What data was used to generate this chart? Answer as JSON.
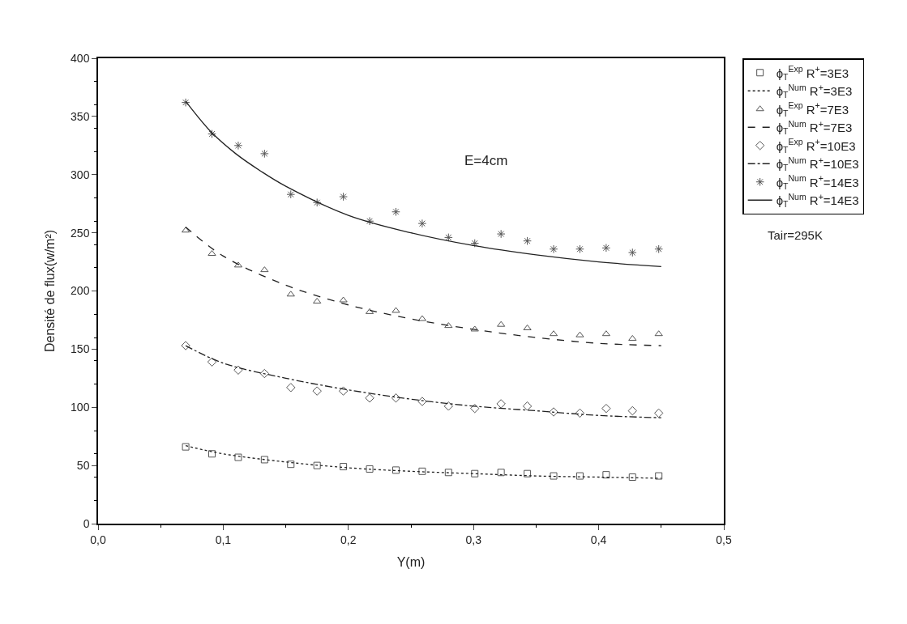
{
  "chart_data": {
    "type": "scatter",
    "xlabel": "Y(m)",
    "ylabel": "Densité de flux(w/m²)",
    "xlim": [
      0,
      0.5
    ],
    "xticks": [
      {
        "value": 0,
        "label": "0,0"
      },
      {
        "value": 0.1,
        "label": "0,1"
      },
      {
        "value": 0.2,
        "label": "0,2"
      },
      {
        "value": 0.3,
        "label": "0,3"
      },
      {
        "value": 0.4,
        "label": "0,4"
      },
      {
        "value": 0.5,
        "label": "0,5"
      }
    ],
    "ylim": [
      0,
      400
    ],
    "yticks": [
      0,
      50,
      100,
      150,
      200,
      250,
      300,
      350,
      400
    ],
    "legend": "right",
    "annotations": [
      "E=4cm",
      "Tair=295K"
    ],
    "series": [
      {
        "name": "ϕ$_{T}$$^{Exp}$ R$^{+}$=3E3",
        "marker": "square",
        "color": "#555555",
        "x": [
          0.07,
          0.091,
          0.112,
          0.133,
          0.154,
          0.175,
          0.196,
          0.217,
          0.238,
          0.259,
          0.28,
          0.301,
          0.322,
          0.343,
          0.364,
          0.385,
          0.406,
          0.427,
          0.448
        ],
        "values": [
          66,
          60,
          57,
          55,
          51,
          50,
          49,
          47,
          46,
          45,
          44,
          43,
          44,
          43,
          41,
          41,
          42,
          40,
          41
        ]
      },
      {
        "name": "ϕ$_{T}$$^{Num}$ R$^{+}$=3E3",
        "type": "line",
        "line_style": "dotted",
        "color": "#222222",
        "x": [
          0.07,
          0.1,
          0.15,
          0.2,
          0.25,
          0.3,
          0.35,
          0.4,
          0.45
        ],
        "values": [
          67,
          60,
          53,
          48,
          45,
          43,
          41,
          40,
          39
        ]
      },
      {
        "name": "ϕ$_{T}$$^{Exp}$ R$^{+}$=7E3",
        "marker": "triangle",
        "color": "#555555",
        "x": [
          0.07,
          0.091,
          0.112,
          0.133,
          0.154,
          0.175,
          0.196,
          0.217,
          0.238,
          0.259,
          0.28,
          0.301,
          0.322,
          0.343,
          0.364,
          0.385,
          0.406,
          0.427,
          0.448
        ],
        "values": [
          252,
          232,
          222,
          218,
          197,
          191,
          192,
          182,
          183,
          176,
          170,
          167,
          171,
          168,
          163,
          162,
          163,
          159,
          163
        ]
      },
      {
        "name": "ϕ$_{T}$$^{Num}$ R$^{+}$=7E3",
        "type": "line",
        "line_style": "dashed",
        "color": "#222222",
        "x": [
          0.07,
          0.1,
          0.15,
          0.2,
          0.25,
          0.3,
          0.35,
          0.4,
          0.45
        ],
        "values": [
          255,
          230,
          205,
          188,
          176,
          167,
          160,
          155,
          153
        ]
      },
      {
        "name": "ϕ$_{T}$$^{Exp}$ R$^{+}$=10E3",
        "marker": "diamond",
        "color": "#555555",
        "x": [
          0.07,
          0.091,
          0.112,
          0.133,
          0.154,
          0.175,
          0.196,
          0.217,
          0.238,
          0.259,
          0.28,
          0.301,
          0.322,
          0.343,
          0.364,
          0.385,
          0.406,
          0.427,
          0.448
        ],
        "values": [
          153,
          139,
          132,
          129,
          117,
          114,
          114,
          108,
          108,
          105,
          101,
          99,
          103,
          101,
          96,
          95,
          99,
          97,
          95
        ]
      },
      {
        "name": "ϕ$_{T}$$^{Num}$ R$^{+}$=10E3",
        "type": "line",
        "line_style": "dashdot",
        "color": "#222222",
        "x": [
          0.07,
          0.1,
          0.15,
          0.2,
          0.25,
          0.3,
          0.35,
          0.4,
          0.45
        ],
        "values": [
          153,
          138,
          125,
          115,
          107,
          101,
          97,
          93,
          91
        ]
      },
      {
        "name": "ϕ$_{T}$$^{Num}$ R$^{+}$=14E3",
        "marker": "cross",
        "color": "#555555",
        "x": [
          0.07,
          0.091,
          0.112,
          0.133,
          0.154,
          0.175,
          0.196,
          0.217,
          0.238,
          0.259,
          0.28,
          0.301,
          0.322,
          0.343,
          0.364,
          0.385,
          0.406,
          0.427,
          0.448
        ],
        "values": [
          362,
          335,
          325,
          318,
          283,
          276,
          281,
          260,
          268,
          258,
          246,
          241,
          249,
          243,
          236,
          236,
          237,
          233,
          236
        ]
      },
      {
        "name": "ϕ$_{T}$$^{Num}$ R$^{+}$=14E3",
        "type": "line",
        "line_style": "solid",
        "color": "#222222",
        "x": [
          0.07,
          0.09,
          0.11,
          0.13,
          0.15,
          0.2,
          0.25,
          0.3,
          0.35,
          0.4,
          0.45
        ],
        "values": [
          363,
          337,
          318,
          303,
          290,
          265,
          250,
          239,
          231,
          225,
          221
        ]
      }
    ]
  }
}
